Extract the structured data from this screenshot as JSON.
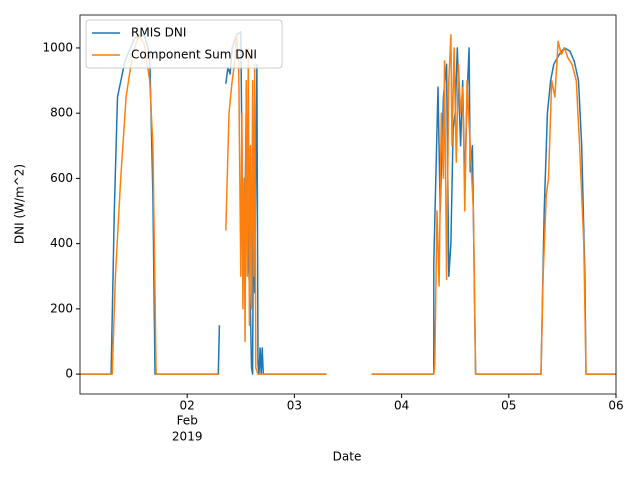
{
  "chart_data": {
    "type": "line",
    "xlabel": "Date",
    "ylabel": "DNI (W/m^2)",
    "xlim": [
      1,
      6
    ],
    "ylim": [
      -61,
      1101
    ],
    "xticks": [
      {
        "value": 2,
        "label": "02"
      },
      {
        "value": 3,
        "label": "03"
      },
      {
        "value": 4,
        "label": "04"
      },
      {
        "value": 5,
        "label": "05"
      },
      {
        "value": 6,
        "label": "06"
      }
    ],
    "xtick_sublabels": [
      "Feb",
      "2019"
    ],
    "yticks": [
      0,
      200,
      400,
      600,
      800,
      1000
    ],
    "legend": "upper left",
    "series": [
      {
        "name": "RMIS DNI",
        "color": "#1f77b4",
        "x": [
          1.0,
          1.29,
          1.32,
          1.35,
          1.42,
          1.51,
          1.6,
          1.65,
          1.68,
          1.7,
          2.29,
          2.3,
          2.33,
          2.36,
          2.38,
          2.4,
          2.42,
          2.46,
          2.5,
          2.51,
          2.52,
          2.53,
          2.55,
          2.57,
          2.59,
          2.6,
          2.61,
          2.62,
          2.63,
          2.65,
          2.66,
          2.67,
          2.68,
          2.69,
          2.7,
          2.71,
          3.3,
          3.5,
          3.72,
          4.3,
          4.3,
          4.34,
          4.36,
          4.39,
          4.42,
          4.44,
          4.46,
          4.48,
          4.5,
          4.52,
          4.55,
          4.57,
          4.59,
          4.61,
          4.63,
          4.64,
          4.66,
          4.69,
          5.3,
          5.33,
          5.36,
          5.39,
          5.42,
          5.47,
          5.52,
          5.57,
          5.61,
          5.65,
          5.68,
          5.71,
          5.72,
          6.0
        ],
        "values": [
          0,
          0,
          500,
          850,
          960,
          1030,
          1040,
          980,
          550,
          0,
          0,
          150,
          null,
          890,
          940,
          920,
          1000,
          1040,
          1050,
          700,
          400,
          300,
          800,
          350,
          200,
          20,
          0,
          700,
          250,
          950,
          30,
          0,
          80,
          0,
          80,
          0,
          0,
          null,
          0,
          0,
          340,
          880,
          500,
          850,
          950,
          300,
          400,
          750,
          800,
          1000,
          700,
          900,
          570,
          850,
          1000,
          620,
          700,
          0,
          0,
          500,
          800,
          900,
          950,
          980,
          1000,
          990,
          960,
          900,
          700,
          300,
          0,
          0
        ]
      },
      {
        "name": "Component Sum DNI",
        "color": "#ff7f0e",
        "x": [
          1.0,
          1.3,
          1.33,
          1.38,
          1.43,
          1.49,
          1.55,
          1.6,
          1.65,
          1.68,
          1.7,
          1.71,
          2.3,
          2.33,
          2.36,
          2.39,
          2.42,
          2.44,
          2.46,
          2.48,
          2.5,
          2.51,
          2.52,
          2.53,
          2.54,
          2.55,
          2.56,
          2.57,
          2.58,
          2.59,
          2.6,
          2.61,
          2.62,
          2.63,
          2.64,
          2.66,
          3.3,
          3.5,
          3.72,
          4.3,
          4.31,
          4.33,
          4.35,
          4.37,
          4.39,
          4.4,
          4.42,
          4.44,
          4.46,
          4.47,
          4.49,
          4.51,
          4.53,
          4.55,
          4.57,
          4.59,
          4.61,
          4.64,
          4.67,
          4.69,
          5.3,
          5.32,
          5.35,
          5.37,
          5.4,
          5.43,
          5.46,
          5.49,
          5.52,
          5.55,
          5.59,
          5.63,
          5.66,
          5.7,
          5.72,
          6.0
        ],
        "values": [
          0,
          0,
          300,
          600,
          850,
          980,
          1040,
          1010,
          900,
          700,
          250,
          0,
          0,
          null,
          440,
          800,
          900,
          950,
          1040,
          950,
          300,
          800,
          200,
          600,
          100,
          900,
          300,
          1000,
          150,
          700,
          200,
          900,
          300,
          950,
          20,
          0,
          0,
          null,
          0,
          0,
          30,
          500,
          270,
          800,
          600,
          960,
          290,
          900,
          1040,
          700,
          1000,
          650,
          950,
          800,
          880,
          500,
          900,
          700,
          500,
          0,
          0,
          300,
          550,
          600,
          900,
          850,
          1020,
          980,
          1000,
          970,
          950,
          900,
          700,
          400,
          0,
          0
        ]
      }
    ]
  }
}
